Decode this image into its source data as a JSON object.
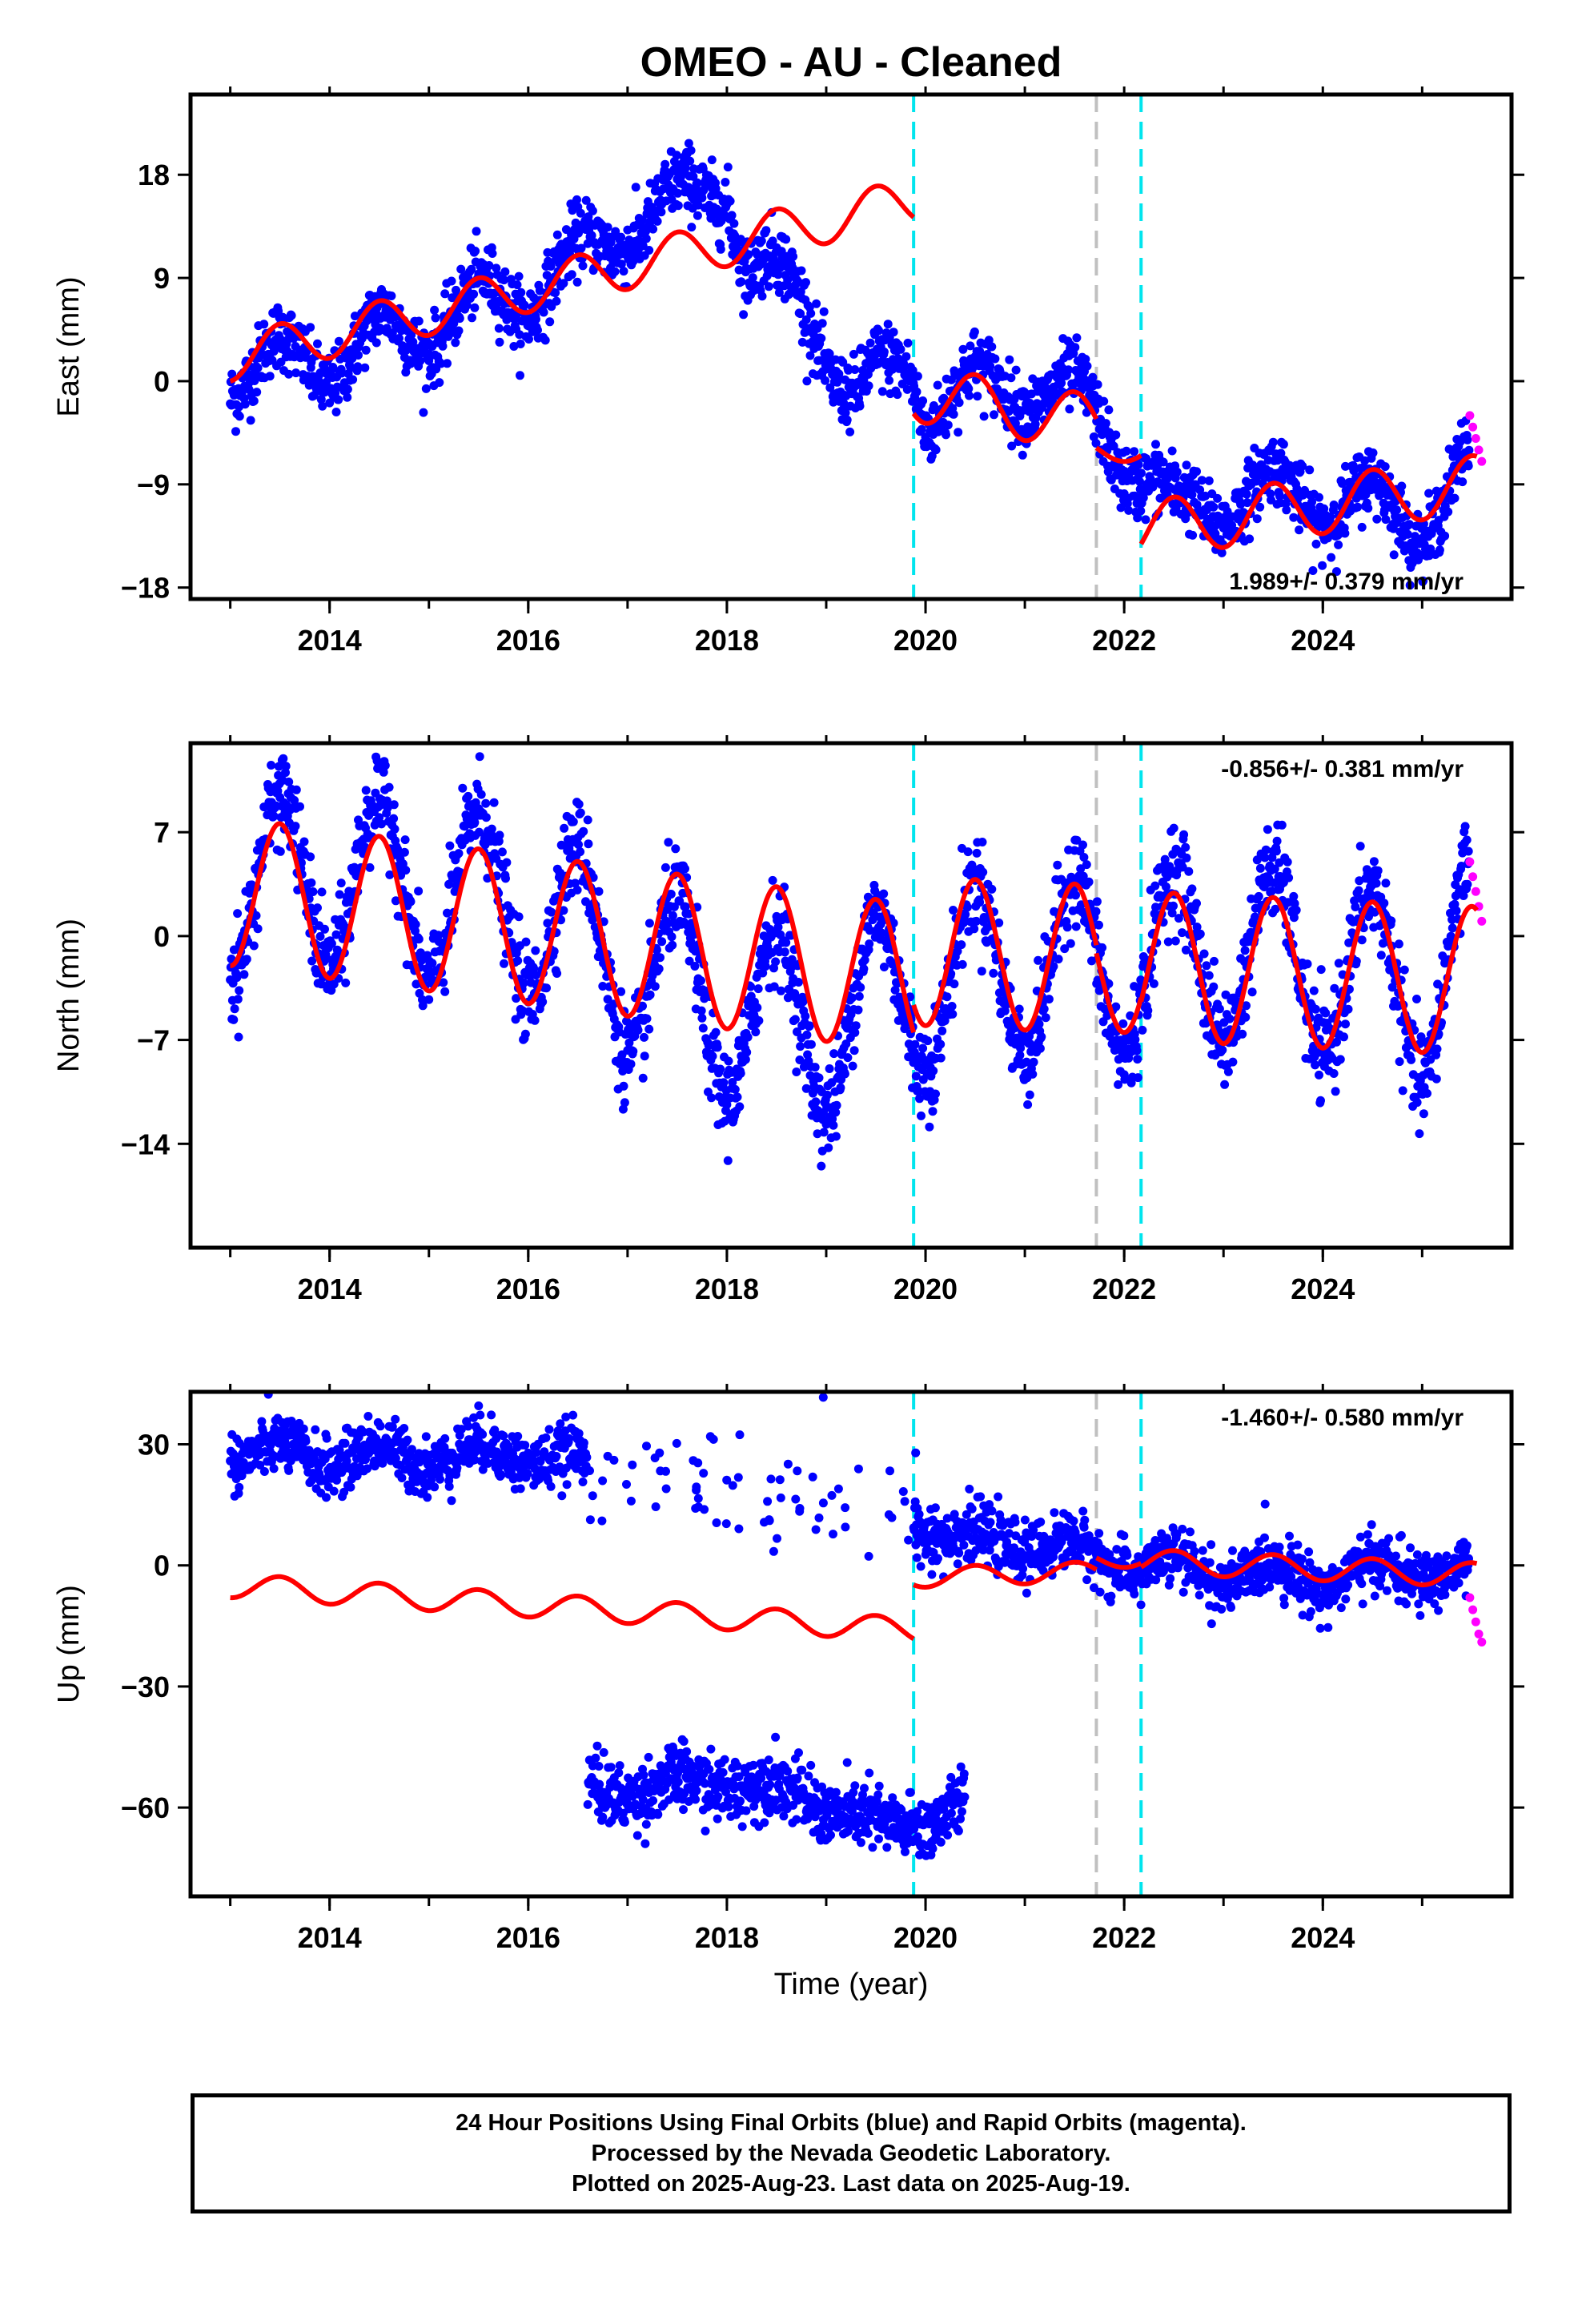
{
  "title": "OMEO  - AU - Cleaned",
  "colors": {
    "final_orbits": "#0000ff",
    "rapid_orbits": "#ff00ff",
    "model": "#ff0000",
    "event_cyan": "#00e5ee",
    "event_gray": "#c0c0c0"
  },
  "chart_data": [
    {
      "type": "scatter",
      "panel": "east",
      "ylabel": "East (mm)",
      "xlabel": "",
      "x_ticks": [
        2014,
        2016,
        2018,
        2020,
        2022,
        2024
      ],
      "y_ticks": [
        18,
        9,
        0,
        -9,
        -18
      ],
      "xlim": [
        2012.6,
        2025.9
      ],
      "ylim": [
        -19,
        25
      ],
      "rate_text": "1.989+/- 0.379 mm/yr",
      "rate_position": "bottom-right",
      "event_lines": [
        {
          "x": 2019.88,
          "color": "cyan"
        },
        {
          "x": 2021.72,
          "color": "gray"
        },
        {
          "x": 2022.17,
          "color": "cyan"
        }
      ],
      "series": [
        {
          "name": "Final Orbits",
          "color": "blue",
          "x_range": [
            2013.0,
            2025.48
          ],
          "trend": [
            [
              2013.0,
              1
            ],
            [
              2014.0,
              2
            ],
            [
              2015.0,
              5
            ],
            [
              2016.0,
              8
            ],
            [
              2016.5,
              10
            ],
            [
              2017.0,
              14
            ],
            [
              2017.5,
              15
            ],
            [
              2018.0,
              18
            ],
            [
              2018.2,
              10
            ],
            [
              2018.8,
              7
            ],
            [
              2019.3,
              -2
            ],
            [
              2019.85,
              2
            ],
            [
              2020.0,
              -2
            ],
            [
              2021.0,
              0
            ],
            [
              2021.7,
              -3
            ],
            [
              2022.2,
              -8
            ],
            [
              2022.5,
              -12
            ],
            [
              2023.0,
              -10
            ],
            [
              2024.0,
              -10
            ],
            [
              2025.0,
              -12
            ],
            [
              2025.45,
              -8
            ]
          ],
          "seasonal_amplitude": 2.5,
          "scatter": 1.5
        },
        {
          "name": "Rapid Orbits",
          "color": "magenta",
          "x_range": [
            2025.48,
            2025.6
          ],
          "values": [
            -3,
            -4,
            -5,
            -6,
            -7
          ]
        }
      ],
      "model": {
        "segments": [
          {
            "x_range": [
              2013.0,
              2019.88
            ],
            "y0": 2.0,
            "slope": 2.0,
            "amplitudes": [
              [
                2013.0,
                2
              ],
              [
                2016.0,
                2
              ],
              [
                2018.0,
                2.5
              ],
              [
                2019.0,
                3
              ]
            ]
          },
          {
            "x_range": [
              2019.88,
              2021.72
            ],
            "y0": -1.0,
            "slope": -1.5,
            "amplitudes": [
              [
                2019.88,
                2.5
              ]
            ]
          },
          {
            "x_range": [
              2021.72,
              2022.17
            ],
            "y0": -6.0,
            "slope": 0,
            "amplitudes": [
              [
                2021.72,
                1
              ]
            ]
          },
          {
            "x_range": [
              2022.17,
              2025.55
            ],
            "y0": -13.0,
            "slope": 1.2,
            "amplitudes": [
              [
                2022.17,
                2.5
              ]
            ]
          }
        ]
      }
    },
    {
      "type": "scatter",
      "panel": "north",
      "ylabel": "North (mm)",
      "xlabel": "",
      "x_ticks": [
        2014,
        2016,
        2018,
        2020,
        2022,
        2024
      ],
      "y_ticks": [
        7,
        0,
        -7,
        -14
      ],
      "xlim": [
        2012.6,
        2025.9
      ],
      "ylim": [
        -21,
        13
      ],
      "rate_text": "-0.856+/- 0.381 mm/yr",
      "rate_position": "top-right",
      "event_lines": [
        {
          "x": 2019.88,
          "color": "cyan"
        },
        {
          "x": 2021.72,
          "color": "gray"
        },
        {
          "x": 2022.17,
          "color": "cyan"
        }
      ],
      "series": [
        {
          "name": "Final Orbits",
          "color": "blue",
          "x_range": [
            2013.0,
            2025.48
          ],
          "trend": [
            [
              2013.0,
              3
            ],
            [
              2014.0,
              4
            ],
            [
              2015.0,
              3
            ],
            [
              2016.0,
              2
            ],
            [
              2017.0,
              -2
            ],
            [
              2018.0,
              -5
            ],
            [
              2019.0,
              -6
            ],
            [
              2020.0,
              -3
            ],
            [
              2021.0,
              -2
            ],
            [
              2022.0,
              -2
            ],
            [
              2023.0,
              -1
            ],
            [
              2024.0,
              -2
            ],
            [
              2025.0,
              -4
            ],
            [
              2025.45,
              0
            ]
          ],
          "seasonal_amplitude": 6.0,
          "scatter": 1.6
        },
        {
          "name": "Rapid Orbits",
          "color": "magenta",
          "x_range": [
            2025.48,
            2025.6
          ],
          "values": [
            5,
            4,
            3,
            2,
            1
          ]
        }
      ],
      "model": {
        "segments": [
          {
            "x_range": [
              2013.0,
              2019.88
            ],
            "y0": 3.0,
            "slope": -0.85,
            "amplitudes": [
              [
                2013.0,
                5
              ]
            ]
          },
          {
            "x_range": [
              2019.88,
              2021.72
            ],
            "y0": -1.0,
            "slope": -0.3,
            "amplitudes": [
              [
                2019.88,
                5
              ]
            ]
          },
          {
            "x_range": [
              2021.72,
              2022.17
            ],
            "y0": -2.0,
            "slope": 0,
            "amplitudes": [
              [
                2021.72,
                4.5
              ]
            ]
          },
          {
            "x_range": [
              2022.17,
              2025.55
            ],
            "y0": -2.0,
            "slope": -0.3,
            "amplitudes": [
              [
                2022.17,
                5
              ]
            ]
          }
        ]
      }
    },
    {
      "type": "scatter",
      "panel": "up",
      "ylabel": "Up (mm)",
      "xlabel": "Time (year)",
      "x_ticks": [
        2014,
        2016,
        2018,
        2020,
        2022,
        2024
      ],
      "y_ticks": [
        30,
        0,
        -30,
        -60
      ],
      "xlim": [
        2012.6,
        2025.9
      ],
      "ylim": [
        -82,
        43
      ],
      "rate_text": "-1.460+/- 0.580 mm/yr",
      "rate_position": "top-right",
      "event_lines": [
        {
          "x": 2019.88,
          "color": "cyan"
        },
        {
          "x": 2021.72,
          "color": "gray"
        },
        {
          "x": 2022.17,
          "color": "cyan"
        }
      ],
      "series": [
        {
          "name": "Final Orbits",
          "color": "blue",
          "x_range": [
            2013.0,
            2016.6
          ],
          "trend": [
            [
              2013.0,
              28
            ],
            [
              2014.0,
              27
            ],
            [
              2015.0,
              27
            ],
            [
              2016.0,
              28
            ],
            [
              2016.6,
              25
            ]
          ],
          "seasonal_amplitude": 3.0,
          "scatter": 3.5
        },
        {
          "name": "Final Orbits (sparse)",
          "color": "blue",
          "x_range": [
            2016.6,
            2020.3
          ],
          "trend": [
            [
              2016.6,
              20
            ],
            [
              2018.0,
              20
            ],
            [
              2019.0,
              15
            ],
            [
              2020.0,
              10
            ]
          ],
          "seasonal_amplitude": 0,
          "scatter": 7,
          "count": 80
        },
        {
          "name": "Final Orbits (offset)",
          "color": "blue",
          "x_range": [
            2016.6,
            2020.4
          ],
          "trend": [
            [
              2016.6,
              -56
            ],
            [
              2017.5,
              -55
            ],
            [
              2018.0,
              -53
            ],
            [
              2019.0,
              -59
            ],
            [
              2019.6,
              -66
            ],
            [
              2020.3,
              -60
            ]
          ],
          "seasonal_amplitude": 2.5,
          "scatter": 4
        },
        {
          "name": "Final Orbits (post-2020)",
          "color": "blue",
          "x_range": [
            2019.88,
            2025.48
          ],
          "trend": [
            [
              2019.9,
              12
            ],
            [
              2020.5,
              5
            ],
            [
              2021.0,
              6
            ],
            [
              2021.7,
              2
            ],
            [
              2022.2,
              0
            ],
            [
              2023.0,
              -2
            ],
            [
              2024.0,
              -3
            ],
            [
              2025.0,
              -1
            ],
            [
              2025.45,
              -3
            ]
          ],
          "seasonal_amplitude": 3,
          "scatter": 3.5
        },
        {
          "name": "Rapid Orbits",
          "color": "magenta",
          "x_range": [
            2025.48,
            2025.6
          ],
          "values": [
            -8,
            -11,
            -14,
            -17,
            -19
          ]
        }
      ],
      "model": {
        "segments": [
          {
            "x_range": [
              2013.0,
              2019.88
            ],
            "y0": -5.0,
            "slope": -1.6,
            "amplitudes": [
              [
                2013.0,
                3
              ]
            ]
          },
          {
            "x_range": [
              2019.88,
              2021.72
            ],
            "y0": -3.0,
            "slope": 0.8,
            "amplitudes": [
              [
                2019.88,
                2.5
              ]
            ]
          },
          {
            "x_range": [
              2021.72,
              2022.17
            ],
            "y0": 1.5,
            "slope": 0,
            "amplitudes": [
              [
                2021.72,
                2
              ]
            ]
          },
          {
            "x_range": [
              2022.17,
              2025.55
            ],
            "y0": 1.0,
            "slope": -1.0,
            "amplitudes": [
              [
                2022.17,
                3
              ]
            ]
          }
        ]
      }
    }
  ],
  "footer": {
    "line1": "24 Hour Positions Using Final Orbits (blue) and Rapid Orbits (magenta).",
    "line2": "Processed by the Nevada Geodetic Laboratory.",
    "line3": "Plotted on 2025-Aug-23. Last data on 2025-Aug-19."
  }
}
